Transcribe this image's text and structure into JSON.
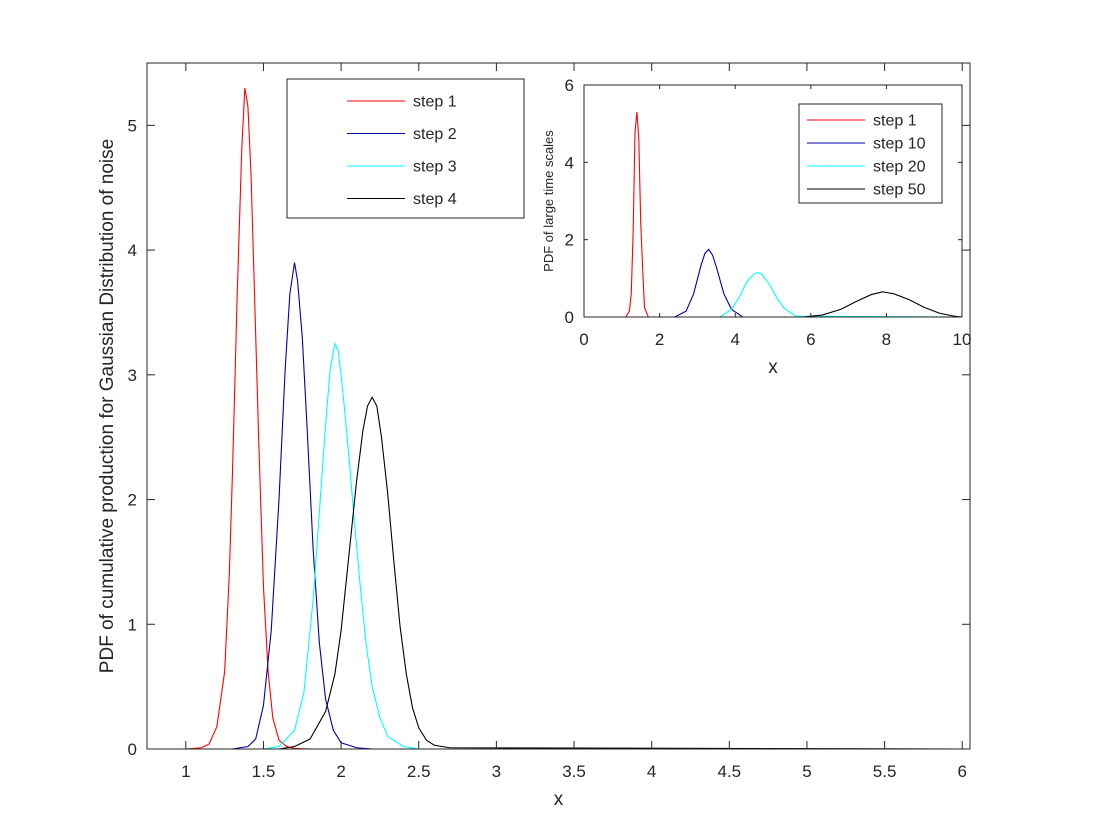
{
  "chart_data": [
    {
      "type": "line",
      "title": "",
      "xlabel": "x",
      "ylabel": "PDF of cumulative production for Gaussian Distribution of noise",
      "xlim": [
        0.75,
        6.05
      ],
      "ylim": [
        0,
        5.5
      ],
      "xticks": [
        1,
        1.5,
        2,
        2.5,
        3,
        3.5,
        4,
        4.5,
        5,
        5.5,
        6
      ],
      "xtick_labels": [
        "1",
        "1.5",
        "2",
        "2.5",
        "3",
        "3.5",
        "4",
        "4.5",
        "5",
        "5.5",
        "6"
      ],
      "yticks": [
        0,
        1,
        2,
        3,
        4,
        5
      ],
      "ytick_labels": [
        "0",
        "1",
        "2",
        "3",
        "4",
        "5"
      ],
      "grid": false,
      "legend_position": "top",
      "series": [
        {
          "name": "step 1",
          "color": "#ff0000",
          "x": [
            1.0,
            1.1,
            1.15,
            1.2,
            1.25,
            1.28,
            1.3,
            1.33,
            1.36,
            1.38,
            1.4,
            1.42,
            1.44,
            1.47,
            1.5,
            1.53,
            1.56,
            1.6,
            1.65,
            1.7,
            1.8,
            6.0
          ],
          "y": [
            0.0,
            0.01,
            0.04,
            0.18,
            0.62,
            1.4,
            2.2,
            3.6,
            4.8,
            5.3,
            5.15,
            4.6,
            3.75,
            2.45,
            1.3,
            0.62,
            0.25,
            0.07,
            0.02,
            0.005,
            0.0,
            0.0
          ]
        },
        {
          "name": "step 2",
          "color": "#0000aa",
          "x": [
            1.3,
            1.4,
            1.45,
            1.5,
            1.55,
            1.6,
            1.64,
            1.67,
            1.7,
            1.72,
            1.75,
            1.78,
            1.82,
            1.86,
            1.9,
            1.95,
            2.0,
            2.1,
            2.2,
            6.0
          ],
          "y": [
            0.0,
            0.02,
            0.08,
            0.35,
            0.95,
            2.0,
            3.05,
            3.65,
            3.9,
            3.75,
            3.3,
            2.6,
            1.6,
            0.85,
            0.4,
            0.15,
            0.05,
            0.01,
            0.0,
            0.0
          ]
        },
        {
          "name": "step 3",
          "color": "#00ffff",
          "x": [
            1.5,
            1.6,
            1.7,
            1.76,
            1.82,
            1.86,
            1.9,
            1.93,
            1.96,
            1.98,
            2.0,
            2.02,
            2.05,
            2.08,
            2.12,
            2.16,
            2.2,
            2.25,
            2.3,
            2.4,
            2.5,
            6.0
          ],
          "y": [
            0.0,
            0.02,
            0.15,
            0.45,
            1.2,
            1.9,
            2.6,
            3.05,
            3.25,
            3.2,
            3.0,
            2.75,
            2.35,
            1.9,
            1.35,
            0.85,
            0.5,
            0.25,
            0.1,
            0.02,
            0.0,
            0.0
          ]
        },
        {
          "name": "step 4",
          "color": "#000000",
          "x": [
            1.6,
            1.7,
            1.8,
            1.9,
            1.96,
            2.0,
            2.05,
            2.1,
            2.14,
            2.17,
            2.2,
            2.23,
            2.26,
            2.3,
            2.34,
            2.38,
            2.42,
            2.46,
            2.5,
            2.55,
            2.6,
            2.7,
            6.0
          ],
          "y": [
            0.0,
            0.02,
            0.08,
            0.3,
            0.6,
            0.95,
            1.55,
            2.15,
            2.55,
            2.75,
            2.82,
            2.75,
            2.5,
            2.05,
            1.5,
            0.98,
            0.6,
            0.33,
            0.17,
            0.07,
            0.03,
            0.01,
            0.0
          ]
        }
      ]
    },
    {
      "type": "line",
      "title": "",
      "xlabel": "x",
      "ylabel": "PDF of large time scales",
      "xlim": [
        0,
        10
      ],
      "ylim": [
        0,
        6
      ],
      "xticks": [
        0,
        2,
        4,
        6,
        8,
        10
      ],
      "xtick_labels": [
        "0",
        "2",
        "4",
        "6",
        "8",
        "10"
      ],
      "yticks": [
        0,
        2,
        4,
        6
      ],
      "ytick_labels": [
        "0",
        "2",
        "4",
        "6"
      ],
      "grid": false,
      "legend_position": "top-right",
      "series": [
        {
          "name": "step 1",
          "color": "#ff0000",
          "x": [
            0.0,
            1.1,
            1.2,
            1.25,
            1.3,
            1.35,
            1.4,
            1.45,
            1.5,
            1.55,
            1.6,
            1.7,
            10.0
          ],
          "y": [
            0.0,
            0.0,
            0.15,
            0.6,
            2.2,
            4.8,
            5.3,
            4.6,
            2.45,
            1.3,
            0.25,
            0.0,
            0.0
          ]
        },
        {
          "name": "step 10",
          "color": "#0000aa",
          "x": [
            0.0,
            2.4,
            2.7,
            2.9,
            3.1,
            3.2,
            3.3,
            3.4,
            3.5,
            3.7,
            3.9,
            4.2,
            10.0
          ],
          "y": [
            0.0,
            0.0,
            0.15,
            0.6,
            1.35,
            1.65,
            1.75,
            1.6,
            1.3,
            0.6,
            0.2,
            0.0,
            0.0
          ]
        },
        {
          "name": "step 20",
          "color": "#00ffff",
          "x": [
            0.0,
            3.6,
            3.9,
            4.1,
            4.3,
            4.5,
            4.6,
            4.7,
            4.9,
            5.1,
            5.3,
            5.6,
            10.0
          ],
          "y": [
            0.0,
            0.0,
            0.2,
            0.5,
            0.9,
            1.12,
            1.15,
            1.1,
            0.85,
            0.5,
            0.22,
            0.02,
            0.0
          ]
        },
        {
          "name": "step 50",
          "color": "#000000",
          "x": [
            0.0,
            5.8,
            6.3,
            6.8,
            7.2,
            7.6,
            7.9,
            8.2,
            8.6,
            9.0,
            9.4,
            9.8,
            10.0
          ],
          "y": [
            0.0,
            0.0,
            0.05,
            0.2,
            0.4,
            0.58,
            0.65,
            0.6,
            0.45,
            0.25,
            0.1,
            0.02,
            0.0
          ]
        }
      ]
    }
  ]
}
